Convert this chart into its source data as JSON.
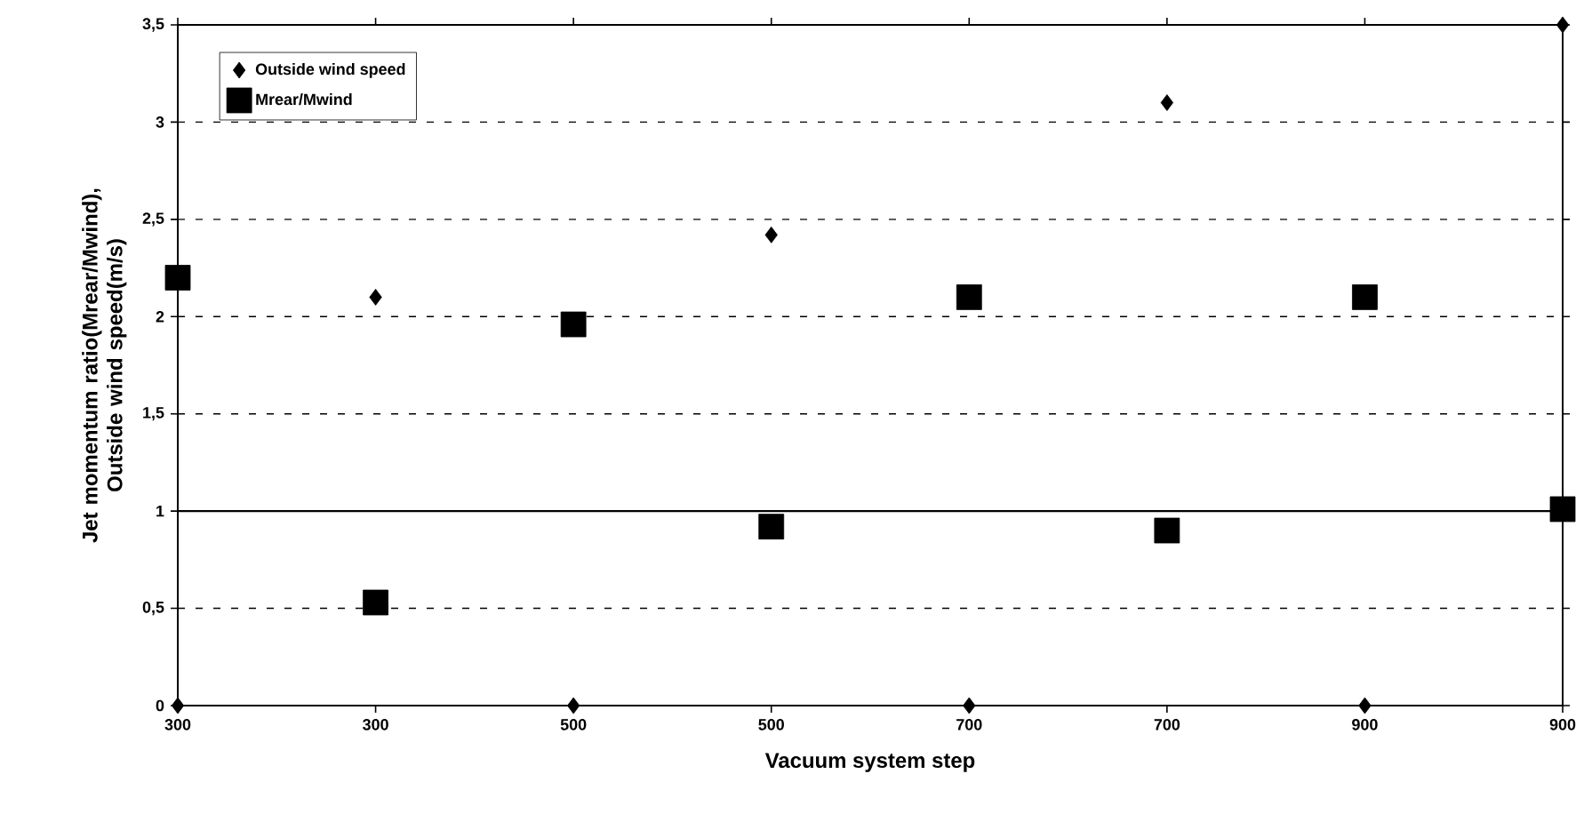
{
  "chart_data": {
    "type": "scatter",
    "xlabel": "Vacuum system step",
    "ylabel": "Jet momentum ratio(Mrear/Mwind), Outside wind speed(m/s)",
    "categories": [
      "300",
      "300",
      "500",
      "500",
      "700",
      "700",
      "900",
      "900"
    ],
    "series": [
      {
        "name": "Outside wind speed",
        "color": "#000000",
        "marker": "diamond",
        "values": [
          0,
          2.1,
          0,
          2.42,
          0,
          3.1,
          0,
          3.5
        ]
      },
      {
        "name": "Mrear/Mwind",
        "color": "#000000",
        "marker": "square",
        "values": [
          2.2,
          0.53,
          1.96,
          0.92,
          2.1,
          0.9,
          2.1,
          1.01
        ]
      }
    ],
    "ylim": [
      0,
      3.5
    ],
    "yticks": [
      0,
      {
        "value": 0.5,
        "label": "0,5"
      },
      1,
      {
        "value": 1.5,
        "label": "1,5"
      },
      2,
      {
        "value": 2.5,
        "label": "2,5"
      },
      3,
      {
        "value": 3.5,
        "label": "3,5"
      }
    ],
    "ref_lines": [
      {
        "axis": "y",
        "value": 1,
        "color": "#000000",
        "line_style": "solid"
      }
    ],
    "grid": "y",
    "legend": "top left"
  }
}
